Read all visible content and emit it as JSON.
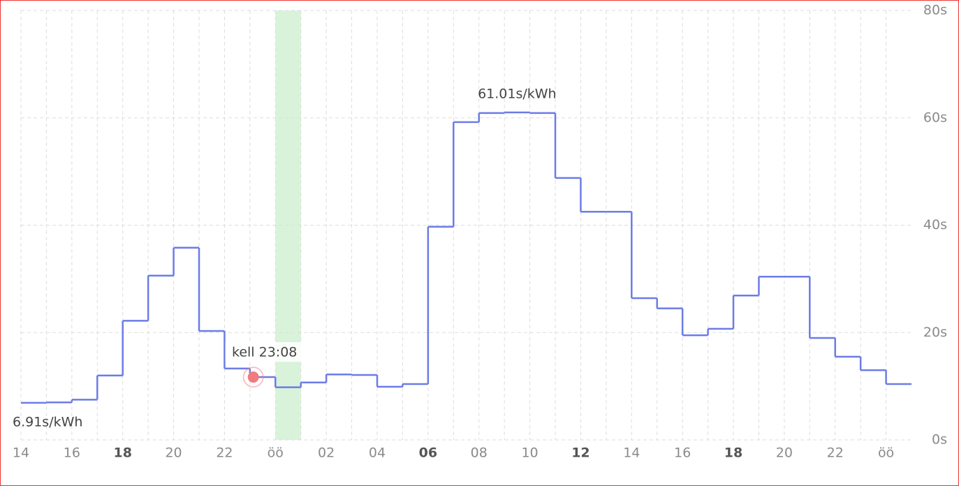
{
  "chart_data": {
    "type": "step",
    "x": [
      0,
      1,
      2,
      3,
      4,
      5,
      6,
      7,
      8,
      9,
      10,
      11,
      12,
      13,
      14,
      15,
      16,
      17,
      18,
      19,
      20,
      21,
      22,
      23,
      24,
      25,
      26,
      27,
      28,
      29,
      30,
      31,
      32,
      33,
      34
    ],
    "series": [
      {
        "color": "#6b7ce6",
        "values": [
          6.91,
          7.0,
          7.5,
          12.0,
          22.2,
          30.6,
          35.8,
          20.3,
          13.3,
          11.7,
          9.8,
          10.7,
          12.2,
          12.1,
          9.9,
          10.4,
          39.7,
          59.2,
          60.9,
          61.01,
          60.9,
          48.8,
          42.5,
          42.5,
          26.4,
          24.5,
          19.5,
          20.7,
          26.9,
          30.4,
          30.4,
          19.0,
          15.5,
          13.0,
          10.4
        ],
        "value_labels": [
          "6.91s/kWh",
          null,
          null,
          null,
          null,
          null,
          null,
          null,
          null,
          null,
          null,
          null,
          null,
          null,
          null,
          null,
          null,
          null,
          null,
          "61.01s/kWh",
          null,
          null,
          null,
          null,
          null,
          null,
          null,
          null,
          null,
          null,
          null,
          null,
          null,
          null,
          null
        ]
      }
    ],
    "xlim": [
      0,
      35
    ],
    "xticks": [
      {
        "value": 0,
        "label": "14"
      },
      {
        "value": 2,
        "label": "16"
      },
      {
        "value": 4,
        "label": "18",
        "bold": true
      },
      {
        "value": 6,
        "label": "20"
      },
      {
        "value": 8,
        "label": "22"
      },
      {
        "value": 10,
        "label": "öö"
      },
      {
        "value": 12,
        "label": "02"
      },
      {
        "value": 14,
        "label": "04"
      },
      {
        "value": 16,
        "label": "06",
        "bold": true
      },
      {
        "value": 18,
        "label": "08"
      },
      {
        "value": 20,
        "label": "10"
      },
      {
        "value": 22,
        "label": "12",
        "bold": true
      },
      {
        "value": 24,
        "label": "14"
      },
      {
        "value": 26,
        "label": "16"
      },
      {
        "value": 28,
        "label": "18",
        "bold": true
      },
      {
        "value": 30,
        "label": "20"
      },
      {
        "value": 32,
        "label": "22"
      },
      {
        "value": 34,
        "label": "öö"
      }
    ],
    "ylim": [
      0,
      80
    ],
    "yticks": [
      {
        "value": 0,
        "label": "0s"
      },
      {
        "value": 20,
        "label": "20s"
      },
      {
        "value": 40,
        "label": "40s"
      },
      {
        "value": 60,
        "label": "60s"
      },
      {
        "value": 80,
        "label": "80s"
      }
    ],
    "grid": true,
    "highlight": {
      "start": 10,
      "end": 11,
      "color": "#d9f3da"
    },
    "current": {
      "x": 9.133,
      "label": "kell 23:08",
      "color": "#f07c80"
    }
  }
}
